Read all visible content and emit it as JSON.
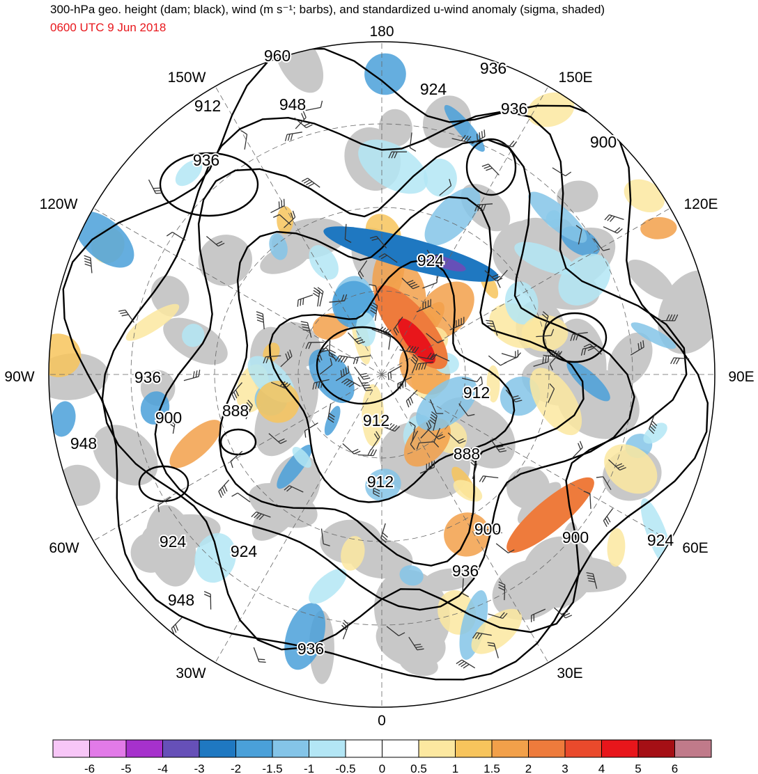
{
  "header": {
    "title": "300-hPa geo. height (dam; black), wind (m s⁻¹; barbs), and standardized u-wind anomaly (sigma, shaded)",
    "subtitle": "0600 UTC 9 Jun 2018",
    "subtitle_color": "#e8161b"
  },
  "map": {
    "projection": "north polar stereographic",
    "longitude_labels": {
      "top": "180",
      "bottom": "0",
      "left": "90W",
      "right": "90E",
      "upper_left": "150W",
      "upper_right": "150E",
      "mid_upper_left": "120W",
      "mid_upper_right": "120E",
      "mid_lower_left": "60W",
      "mid_lower_right": "60E",
      "lower_left": "30W",
      "lower_right": "30E"
    },
    "contour_labels": [
      "960",
      "936",
      "924",
      "912",
      "948",
      "936",
      "900",
      "936",
      "924",
      "936",
      "912",
      "900",
      "888",
      "912",
      "888",
      "948",
      "912",
      "900",
      "924",
      "924",
      "900",
      "924",
      "936",
      "948",
      "936"
    ],
    "land_color": "#c8c8c8",
    "ocean_color": "#ffffff"
  },
  "colorbar": {
    "colors": [
      "#f7c6f7",
      "#e27ae8",
      "#a631cc",
      "#6650b8",
      "#1f78c1",
      "#4aa0d9",
      "#84c4e8",
      "#b3e6f5",
      "#ffffff",
      "#ffffff",
      "#fce8a0",
      "#f7c45c",
      "#f2a04a",
      "#ee7b3c",
      "#ea4a2c",
      "#e8161b",
      "#a50f15",
      "#c07a8a"
    ],
    "tick_labels": [
      "-6",
      "-5",
      "-4",
      "-3",
      "-2",
      "-1.5",
      "-1",
      "-0.5",
      "0",
      "0.5",
      "1",
      "1.5",
      "2",
      "3",
      "4",
      "5",
      "6"
    ]
  }
}
